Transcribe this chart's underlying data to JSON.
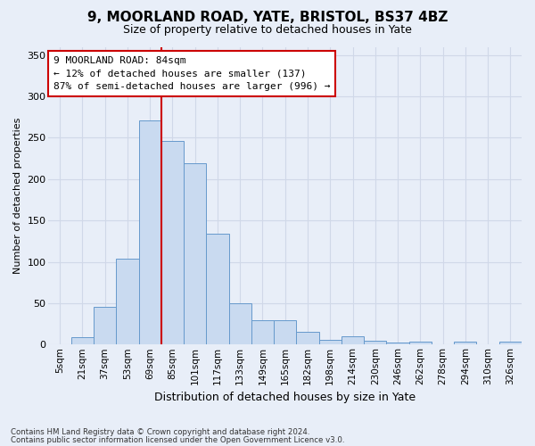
{
  "title": "9, MOORLAND ROAD, YATE, BRISTOL, BS37 4BZ",
  "subtitle": "Size of property relative to detached houses in Yate",
  "xlabel": "Distribution of detached houses by size in Yate",
  "ylabel": "Number of detached properties",
  "footnote1": "Contains HM Land Registry data © Crown copyright and database right 2024.",
  "footnote2": "Contains public sector information licensed under the Open Government Licence v3.0.",
  "bar_color": "#c9daf0",
  "bar_edge_color": "#6699cc",
  "line_color": "#cc0000",
  "annotation_line1": "9 MOORLAND ROAD: 84sqm",
  "annotation_line2": "← 12% of detached houses are smaller (137)",
  "annotation_line3": "87% of semi-detached houses are larger (996) →",
  "annotation_box_color": "#ffffff",
  "annotation_box_edge": "#cc0000",
  "categories": [
    "5sqm",
    "21sqm",
    "37sqm",
    "53sqm",
    "69sqm",
    "85sqm",
    "101sqm",
    "117sqm",
    "133sqm",
    "149sqm",
    "165sqm",
    "182sqm",
    "198sqm",
    "214sqm",
    "230sqm",
    "246sqm",
    "262sqm",
    "278sqm",
    "294sqm",
    "310sqm",
    "326sqm"
  ],
  "values": [
    0,
    9,
    46,
    104,
    271,
    246,
    219,
    134,
    50,
    29,
    29,
    15,
    6,
    10,
    5,
    2,
    3,
    0,
    4,
    0,
    4
  ],
  "ylim": [
    0,
    360
  ],
  "yticks": [
    0,
    50,
    100,
    150,
    200,
    250,
    300,
    350
  ],
  "red_line_x": 4.5,
  "background_color": "#e8eef8",
  "grid_color": "#d0d8e8"
}
